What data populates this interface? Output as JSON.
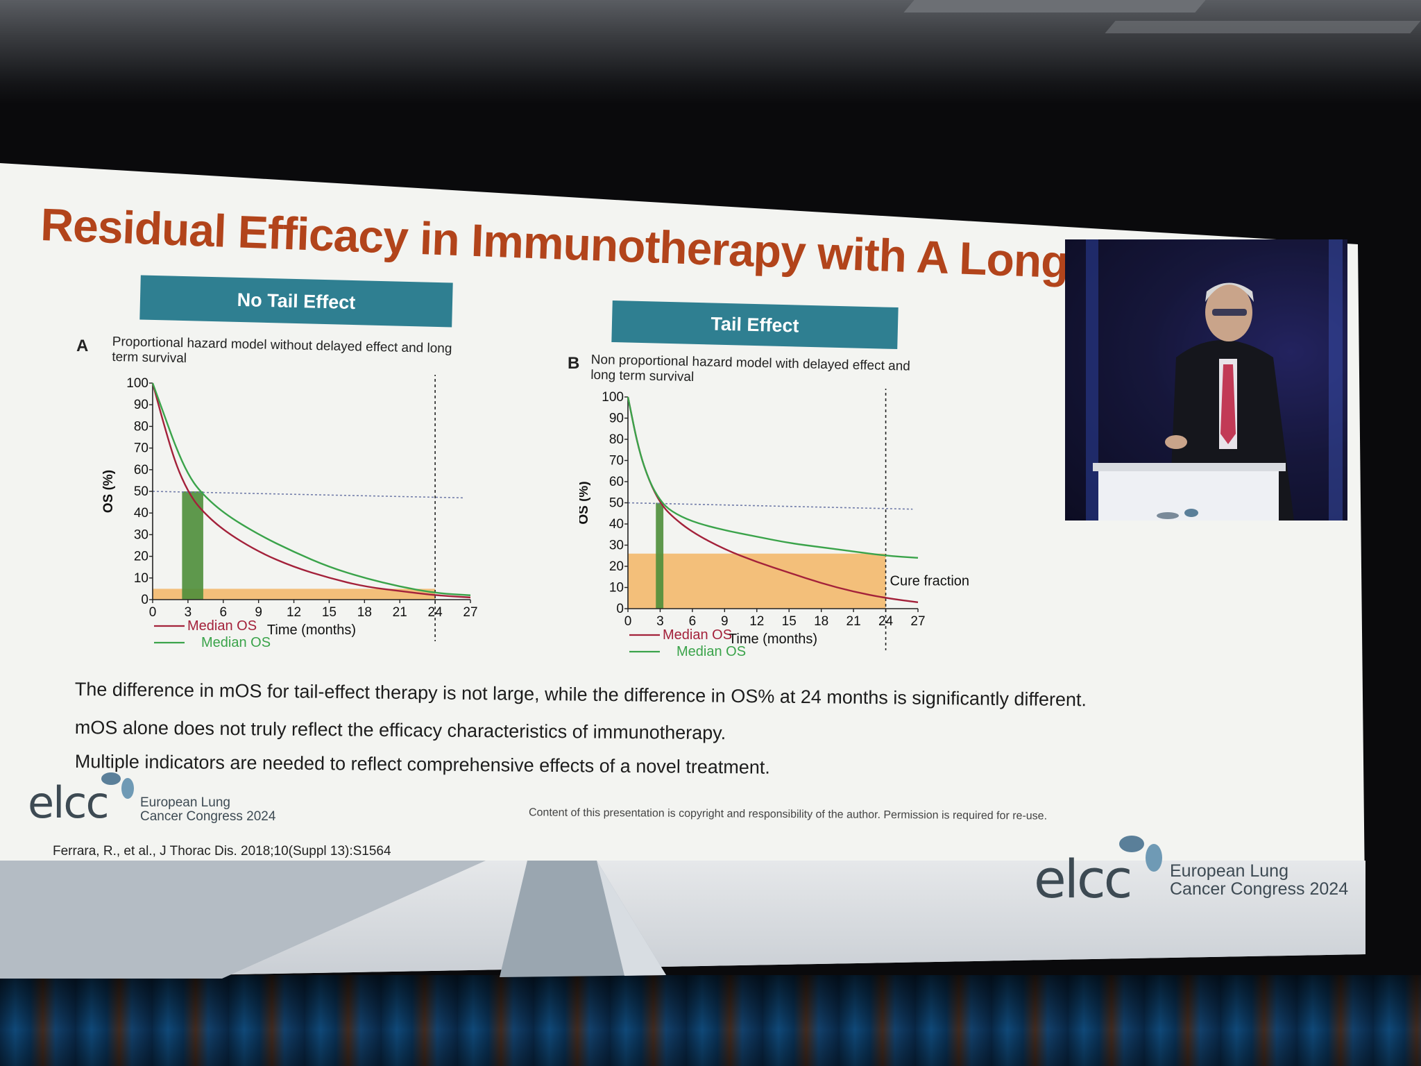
{
  "slide": {
    "title": "Residual Efficacy in Immunotherapy with A Longer Duration",
    "banner_left": "No Tail Effect",
    "banner_right": "Tail Effect",
    "panel_a": {
      "letter": "A",
      "subtitle_line1": "Proportional hazard model without delayed effect and long",
      "subtitle_line2": "term survival"
    },
    "panel_b": {
      "letter": "B",
      "subtitle_line1": "Non proportional hazard model with delayed effect and",
      "subtitle_line2": "long term survival",
      "annotation": "Cure fraction"
    },
    "bullets": [
      "The difference in mOS for tail-effect therapy is not large, while the difference in OS% at 24 months is significantly different.",
      "mOS alone does not truly reflect the efficacy characteristics of immunotherapy.",
      "Multiple indicators are needed to reflect comprehensive effects of a novel treatment."
    ],
    "copyright": "Content of this presentation is copyright and responsibility of the author. Permission is required for re-use.",
    "citation": "Ferrara, R., et al., J Thorac Dis. 2018;10(Suppl 13):S1564",
    "logo": {
      "wordmark": "elcc",
      "line1": "European Lung",
      "line2": "Cancer Congress 2024"
    }
  },
  "chart_data": [
    {
      "type": "line",
      "panel": "A",
      "xlabel": "Time (months)",
      "ylabel": "OS (%)",
      "x_ticks": [
        "0",
        "3",
        "6",
        "9",
        "12",
        "15",
        "18",
        "21",
        "24",
        "27"
      ],
      "y_ticks": [
        "0",
        "10",
        "20",
        "30",
        "40",
        "50",
        "60",
        "70",
        "80",
        "90",
        "100"
      ],
      "xlim": [
        0,
        27
      ],
      "ylim": [
        0,
        100
      ],
      "reference_line_y": 50,
      "reference_line_x": 24,
      "legend": [
        "Median OS",
        "Median OS"
      ],
      "series": [
        {
          "name": "Median OS",
          "color": "#a3213a",
          "x": [
            0,
            1,
            2,
            3,
            4,
            6,
            9,
            12,
            15,
            18,
            21,
            24,
            27
          ],
          "y": [
            100,
            80,
            62,
            50,
            42,
            32,
            22,
            15,
            10,
            6,
            4,
            2,
            1
          ]
        },
        {
          "name": "Median OS",
          "color": "#3aa34a",
          "x": [
            0,
            1,
            2,
            3,
            4,
            6,
            9,
            12,
            15,
            18,
            21,
            24,
            27
          ],
          "y": [
            100,
            85,
            70,
            58,
            50,
            40,
            30,
            22,
            15,
            10,
            6,
            3,
            2
          ]
        }
      ],
      "median_band_x": [
        2.5,
        4.3
      ],
      "bottom_band_y": 5,
      "colors": {
        "band_green": "#4e8e3a",
        "band_orange": "#f2b25c",
        "ref_line": "#6f7aa8"
      }
    },
    {
      "type": "line",
      "panel": "B",
      "xlabel": "Time (months)",
      "ylabel": "OS (%)",
      "x_ticks": [
        "0",
        "3",
        "6",
        "9",
        "12",
        "15",
        "18",
        "21",
        "24",
        "27"
      ],
      "y_ticks": [
        "0",
        "10",
        "20",
        "30",
        "40",
        "50",
        "60",
        "70",
        "80",
        "90",
        "100"
      ],
      "xlim": [
        0,
        27
      ],
      "ylim": [
        0,
        100
      ],
      "reference_line_y": 50,
      "reference_line_x": 24,
      "legend": [
        "Median OS",
        "Median OS"
      ],
      "series": [
        {
          "name": "Median OS",
          "color": "#a3213a",
          "x": [
            0,
            1,
            2,
            3,
            4,
            6,
            9,
            12,
            15,
            18,
            21,
            24,
            27
          ],
          "y": [
            100,
            75,
            60,
            50,
            44,
            36,
            28,
            22,
            17,
            12,
            8,
            5,
            3
          ]
        },
        {
          "name": "Median OS",
          "color": "#3aa34a",
          "x": [
            0,
            1,
            2,
            3,
            4,
            6,
            9,
            12,
            15,
            18,
            21,
            24,
            27
          ],
          "y": [
            100,
            75,
            60,
            51,
            46,
            41,
            37,
            34,
            31,
            29,
            27,
            25,
            24
          ]
        }
      ],
      "median_band_x": [
        2.6,
        3.3
      ],
      "cure_fraction_y": 26,
      "colors": {
        "band_green": "#4e8e3a",
        "band_orange": "#f2b25c",
        "ref_line": "#6f7aa8"
      }
    }
  ]
}
